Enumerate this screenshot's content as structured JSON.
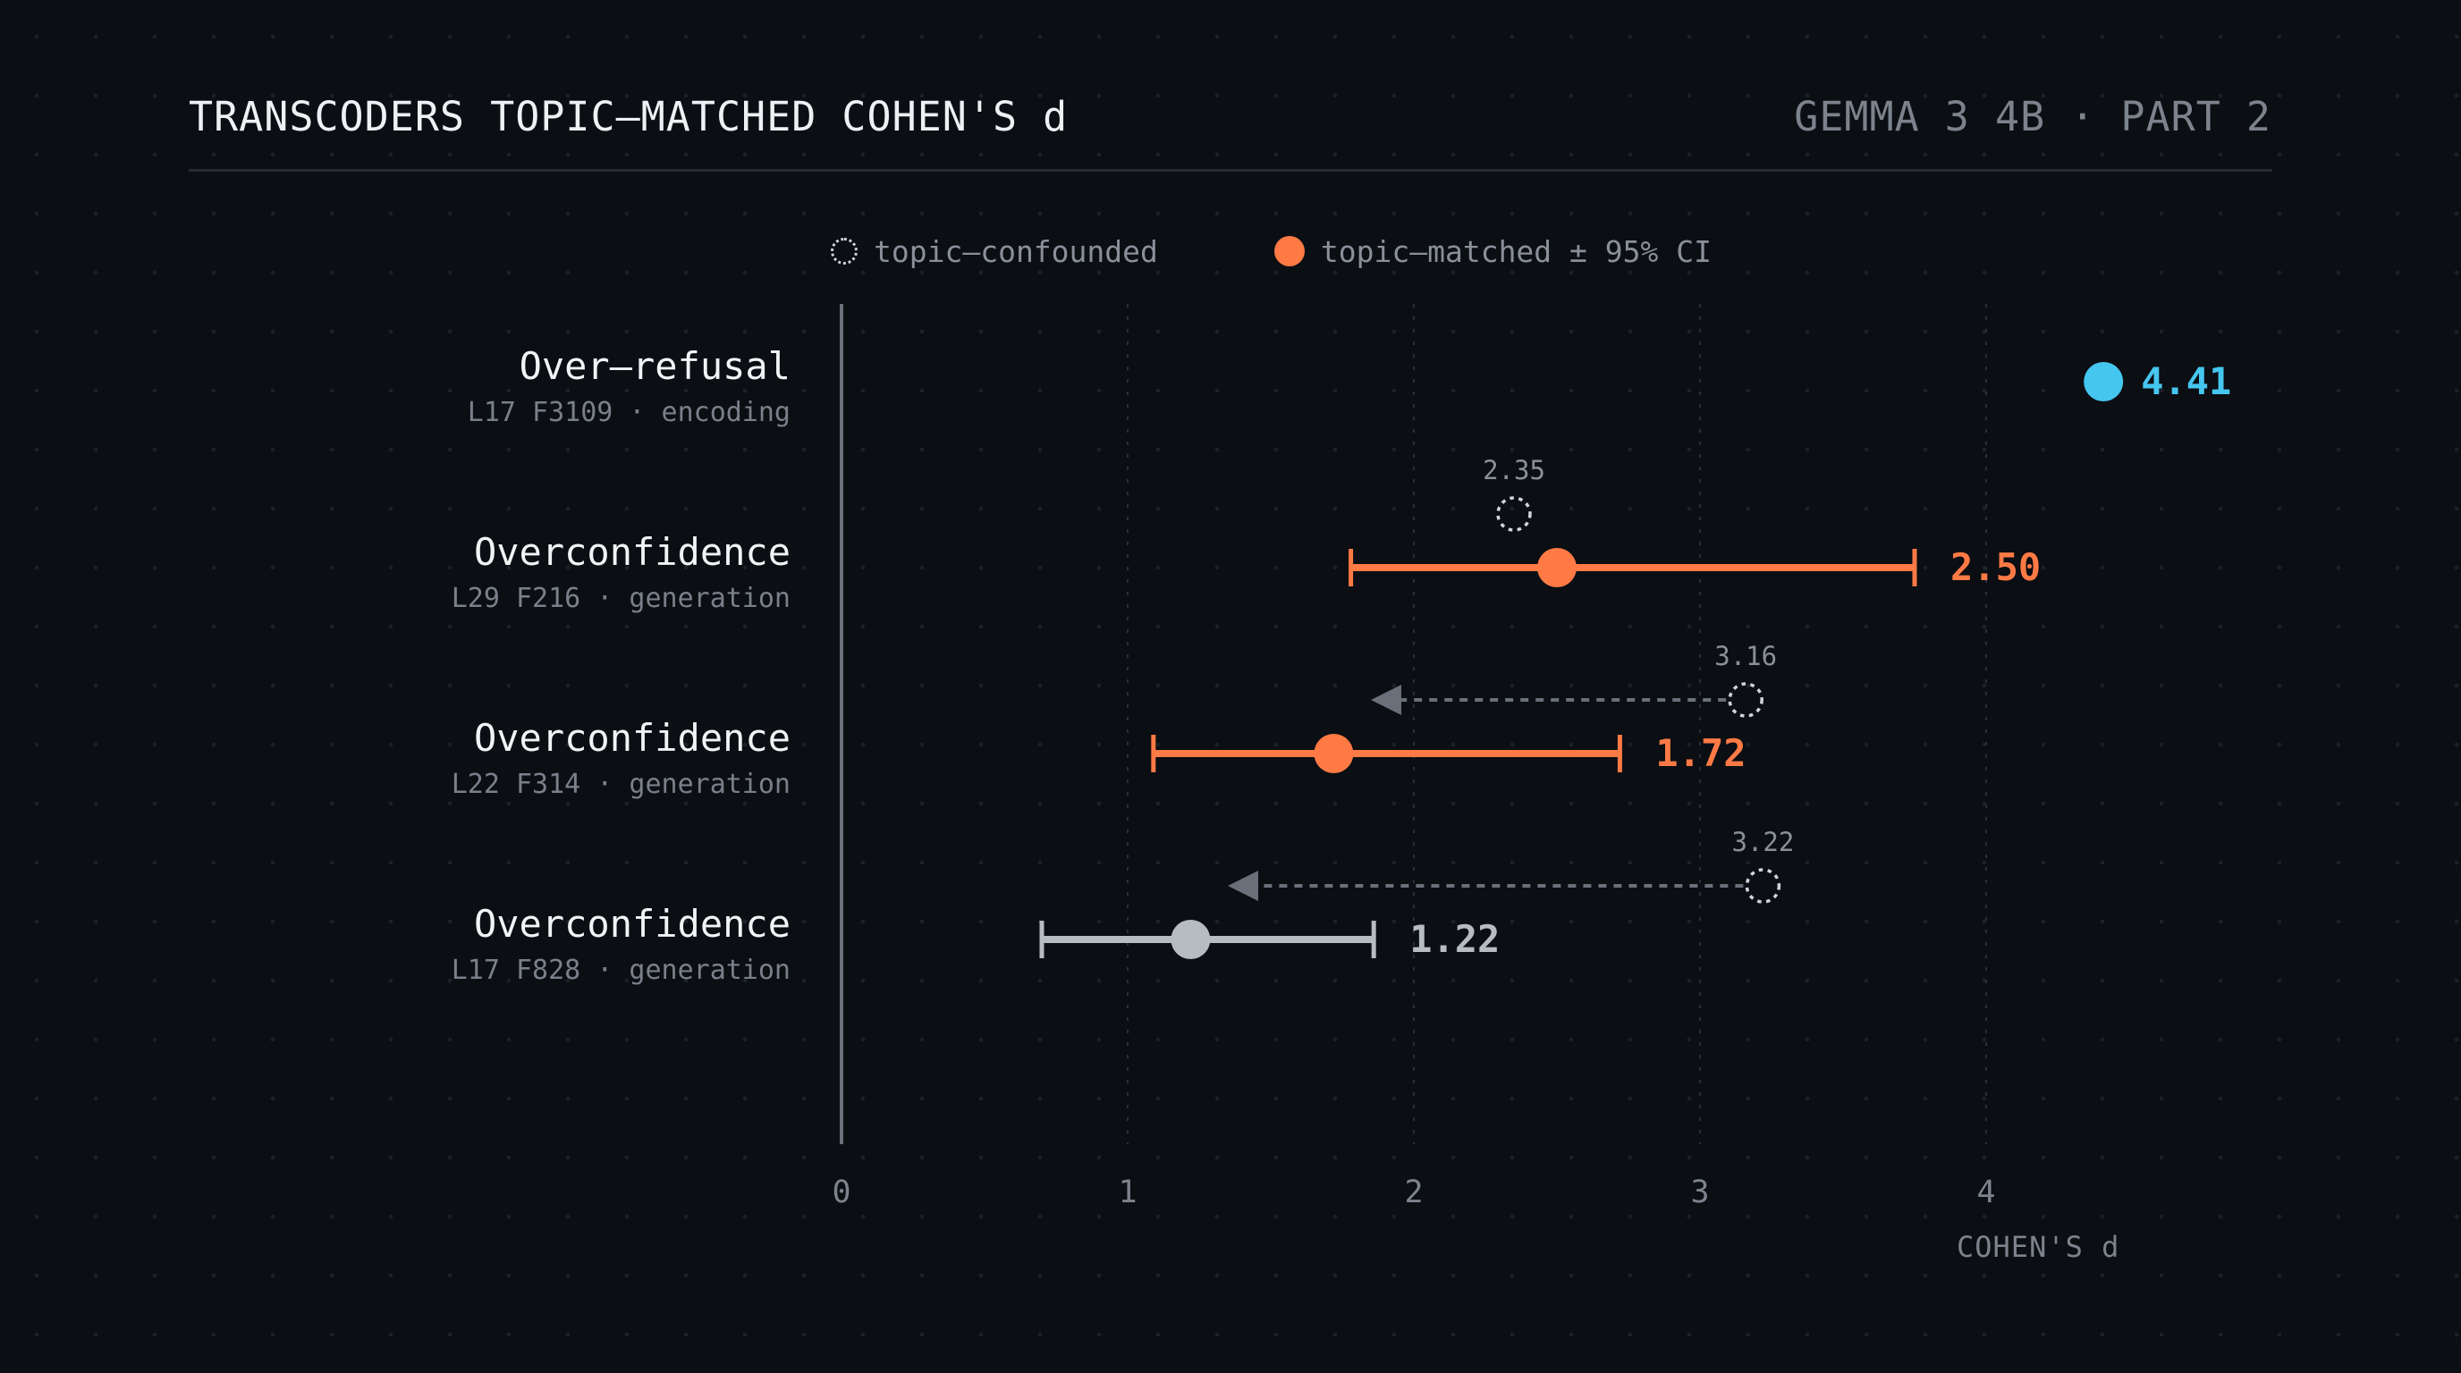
{
  "header": {
    "title": "TRANSCODERS TOPIC–MATCHED COHEN'S d",
    "subtitle": "GEMMA 3 4B · PART 2"
  },
  "legend": {
    "confounded_label": "topic–confounded",
    "matched_label": "topic–matched ± 95% CI"
  },
  "colors": {
    "background": "#0b0e13",
    "matched": "#ff7a45",
    "highlight": "#45c6ef",
    "neutral": "#b7bbc2",
    "confounded": "#d2d5da",
    "arrow": "#6a7079",
    "axis": "#7d838c"
  },
  "chart_data": {
    "type": "scatter",
    "xlabel": "COHEN'S d",
    "xlim": [
      0,
      4.9
    ],
    "xticks": [
      "0",
      "1",
      "2",
      "3",
      "4"
    ],
    "grid": true,
    "legend_position": "top",
    "rows": [
      {
        "name": "Over–refusal",
        "meta": "L17 F3109 · encoding",
        "matched": 4.41,
        "matched_label": "4.41",
        "ci": null,
        "confounded": null,
        "confounded_label": "",
        "color": "highlight"
      },
      {
        "name": "Overconfidence",
        "meta": "L29 F216 · generation",
        "matched": 2.5,
        "matched_label": "2.50",
        "ci": [
          1.78,
          3.75
        ],
        "confounded": 2.35,
        "confounded_label": "2.35",
        "arrow": false,
        "color": "matched"
      },
      {
        "name": "Overconfidence",
        "meta": "L22 F314 · generation",
        "matched": 1.72,
        "matched_label": "1.72",
        "ci": [
          1.09,
          2.72
        ],
        "confounded": 3.16,
        "confounded_label": "3.16",
        "arrow": true,
        "arrow_to": 1.85,
        "color": "matched"
      },
      {
        "name": "Overconfidence",
        "meta": "L17 F828 · generation",
        "matched": 1.22,
        "matched_label": "1.22",
        "ci": [
          0.7,
          1.86
        ],
        "confounded": 3.22,
        "confounded_label": "3.22",
        "arrow": true,
        "arrow_to": 1.35,
        "color": "neutral"
      }
    ]
  }
}
